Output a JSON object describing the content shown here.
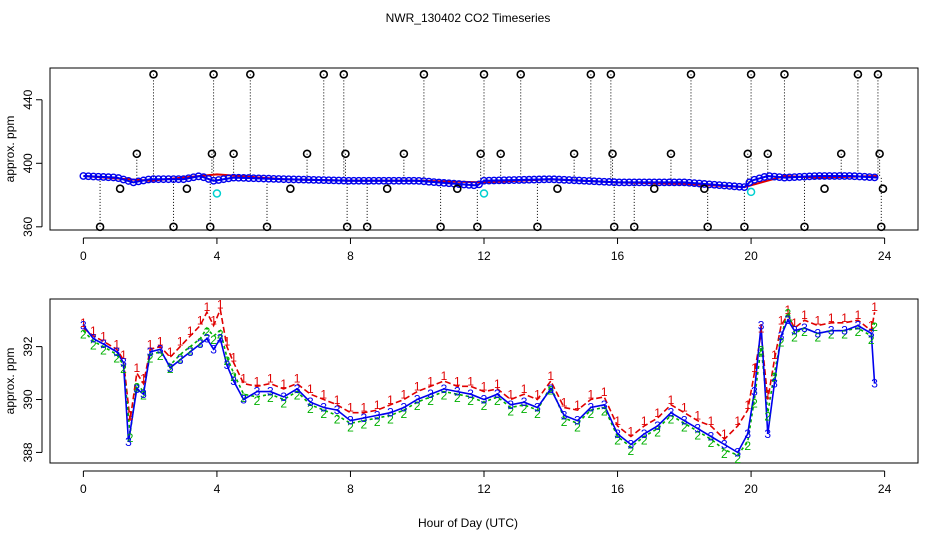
{
  "title": "NWR_130402  CO2 Timeseries",
  "xlabel": "Hour of Day (UTC)",
  "colors": {
    "series1": "#e00000",
    "series2": "#00b000",
    "series3": "#0000ee",
    "points_black": "#000000",
    "points_cyan": "#00d0d0"
  },
  "chart_data": [
    {
      "type": "scatter",
      "panel": "top",
      "ylabel": "approx. ppm",
      "xlim": [
        -1,
        25
      ],
      "ylim": [
        358,
        460
      ],
      "xticks": [
        0,
        4,
        8,
        12,
        16,
        20,
        24
      ],
      "yticks": [
        360,
        400,
        440
      ],
      "xtick_labels": [
        "0",
        "4",
        "8",
        "12",
        "16",
        "20",
        "24"
      ],
      "ytick_labels": [
        "360",
        "400",
        "440"
      ],
      "baseline_series": [
        {
          "name": "red",
          "x": [
            0,
            2,
            4,
            6,
            8,
            10,
            12,
            14,
            16,
            18,
            19.8,
            21,
            22,
            23.8
          ],
          "y": [
            392,
            389,
            393,
            390,
            389,
            389,
            388,
            390,
            388,
            387,
            385,
            392,
            391,
            392
          ]
        },
        {
          "name": "blue",
          "x": [
            0,
            1,
            1.5,
            2,
            3,
            3.5,
            3.9,
            4.5,
            6,
            8,
            10,
            11.8,
            12,
            14,
            16,
            18,
            19.8,
            20,
            20.5,
            21,
            22,
            23,
            23.8
          ],
          "y": [
            392,
            391,
            388,
            390,
            390,
            392,
            389,
            391,
            390,
            389,
            389,
            386,
            389,
            390,
            388,
            388,
            385,
            389,
            392,
            391,
            392,
            392,
            391
          ]
        }
      ],
      "cyan_points": {
        "x": [
          4.0,
          12.0,
          20.0
        ],
        "y": [
          381,
          381,
          382
        ]
      },
      "high_spikes": {
        "x": [
          2.1,
          3.9,
          5.0,
          7.2,
          7.8,
          10.2,
          12.0,
          13.1,
          15.2,
          15.8,
          18.2,
          20.0,
          21.0,
          23.2,
          23.8
        ],
        "y": [
          456,
          456,
          456,
          456,
          456,
          456,
          456,
          456,
          456,
          456,
          456,
          456,
          456,
          456,
          456
        ]
      },
      "mid_spikes": {
        "x": [
          1.6,
          3.85,
          4.5,
          6.7,
          7.85,
          9.6,
          11.9,
          12.5,
          14.7,
          15.85,
          17.6,
          19.9,
          20.5,
          22.7,
          23.85
        ],
        "y": [
          406,
          406,
          406,
          406,
          406,
          406,
          406,
          406,
          406,
          406,
          406,
          406,
          406,
          406,
          406
        ]
      },
      "low_spikes": {
        "x": [
          0.5,
          2.7,
          3.8,
          5.5,
          7.9,
          8.5,
          10.7,
          11.8,
          13.6,
          15.9,
          16.5,
          18.7,
          19.8,
          21.6,
          23.9
        ],
        "y": [
          360,
          360,
          360,
          360,
          360,
          360,
          360,
          360,
          360,
          360,
          360,
          360,
          360,
          360,
          360
        ]
      },
      "minor_points": {
        "x": [
          1.1,
          3.1,
          6.2,
          9.1,
          11.2,
          14.2,
          17.1,
          18.6,
          22.2,
          23.95
        ],
        "y": [
          384,
          384,
          384,
          384,
          384,
          384,
          384,
          384,
          384,
          384
        ]
      }
    },
    {
      "type": "line",
      "panel": "bottom",
      "ylabel": "approx. ppm",
      "xlim": [
        -1,
        25
      ],
      "ylim": [
        387.6,
        393.8
      ],
      "xticks": [
        0,
        4,
        8,
        12,
        16,
        20,
        24
      ],
      "yticks": [
        388,
        390,
        392
      ],
      "xtick_labels": [
        "0",
        "4",
        "8",
        "12",
        "16",
        "20",
        "24"
      ],
      "ytick_labels": [
        "388",
        "390",
        "392"
      ],
      "series": [
        {
          "name": "1",
          "marker": "1",
          "x": [
            0,
            0.3,
            0.6,
            1.0,
            1.2,
            1.4,
            1.6,
            1.8,
            2.0,
            2.3,
            2.6,
            2.9,
            3.2,
            3.5,
            3.7,
            3.9,
            4.1,
            4.3,
            4.5,
            4.8,
            5.2,
            5.6,
            6.0,
            6.4,
            6.8,
            7.2,
            7.6,
            8.0,
            8.4,
            8.8,
            9.2,
            9.6,
            10.0,
            10.4,
            10.8,
            11.2,
            11.6,
            12.0,
            12.4,
            12.8,
            13.2,
            13.6,
            14.0,
            14.4,
            14.8,
            15.2,
            15.6,
            16.0,
            16.4,
            16.8,
            17.2,
            17.6,
            18.0,
            18.4,
            18.8,
            19.2,
            19.6,
            19.9,
            20.1,
            20.3,
            20.5,
            20.7,
            20.9,
            21.1,
            21.3,
            21.6,
            22.0,
            22.4,
            22.8,
            23.2,
            23.6,
            23.7
          ],
          "y": [
            392.7,
            392.4,
            392.2,
            391.9,
            391.5,
            389.2,
            391.0,
            390.6,
            391.9,
            392.0,
            391.6,
            392.0,
            392.4,
            392.8,
            393.3,
            392.8,
            393.4,
            392.0,
            391.4,
            390.6,
            390.5,
            390.6,
            390.4,
            390.6,
            390.2,
            390.0,
            389.8,
            389.5,
            389.5,
            389.6,
            389.8,
            390.0,
            390.3,
            390.5,
            390.7,
            390.5,
            390.5,
            390.3,
            390.4,
            390.0,
            390.2,
            390.0,
            390.7,
            389.7,
            389.6,
            390.0,
            390.1,
            389.0,
            388.6,
            389.0,
            389.3,
            389.8,
            389.5,
            389.2,
            389.0,
            388.5,
            389.0,
            389.6,
            391.0,
            392.5,
            390.0,
            391.5,
            392.8,
            393.2,
            392.7,
            393.0,
            392.8,
            392.9,
            392.9,
            393.0,
            392.6,
            393.3
          ]
        },
        {
          "name": "2",
          "marker": "2",
          "x": [
            0,
            0.3,
            0.6,
            1.0,
            1.2,
            1.4,
            1.6,
            1.8,
            2.0,
            2.3,
            2.6,
            2.9,
            3.2,
            3.5,
            3.7,
            3.9,
            4.1,
            4.3,
            4.5,
            4.8,
            5.2,
            5.6,
            6.0,
            6.4,
            6.8,
            7.2,
            7.6,
            8.0,
            8.4,
            8.8,
            9.2,
            9.6,
            10.0,
            10.4,
            10.8,
            11.2,
            11.6,
            12.0,
            12.4,
            12.8,
            13.2,
            13.6,
            14.0,
            14.4,
            14.8,
            15.2,
            15.6,
            16.0,
            16.4,
            16.8,
            17.2,
            17.6,
            18.0,
            18.4,
            18.8,
            19.2,
            19.6,
            19.9,
            20.1,
            20.3,
            20.5,
            20.7,
            20.9,
            21.1,
            21.3,
            21.6,
            22.0,
            22.4,
            22.8,
            23.2,
            23.6,
            23.7
          ],
          "y": [
            392.6,
            392.2,
            392.0,
            391.7,
            391.3,
            388.7,
            390.6,
            390.3,
            391.7,
            391.8,
            391.3,
            391.7,
            392.0,
            392.3,
            392.7,
            392.4,
            392.6,
            391.6,
            391.0,
            390.2,
            390.1,
            390.2,
            390.0,
            390.3,
            389.8,
            389.6,
            389.4,
            389.1,
            389.2,
            389.3,
            389.4,
            389.6,
            389.9,
            390.1,
            390.3,
            390.2,
            390.1,
            389.9,
            390.1,
            389.7,
            389.8,
            389.6,
            390.5,
            389.3,
            389.1,
            389.6,
            389.7,
            388.6,
            388.2,
            388.6,
            388.9,
            389.4,
            389.1,
            388.8,
            388.5,
            388.1,
            387.9,
            388.4,
            390.0,
            392.0,
            389.5,
            391.0,
            392.3,
            393.4,
            392.5,
            392.7,
            392.5,
            392.6,
            392.6,
            392.7,
            392.4,
            392.9
          ]
        },
        {
          "name": "3",
          "marker": "3",
          "x": [
            0,
            0.3,
            0.6,
            1.0,
            1.2,
            1.35,
            1.6,
            1.8,
            2.0,
            2.3,
            2.6,
            2.9,
            3.2,
            3.5,
            3.7,
            3.9,
            4.1,
            4.3,
            4.5,
            4.8,
            5.2,
            5.6,
            6.0,
            6.4,
            6.8,
            7.2,
            7.6,
            8.0,
            8.4,
            8.8,
            9.2,
            9.6,
            10.0,
            10.4,
            10.8,
            11.2,
            11.6,
            12.0,
            12.4,
            12.8,
            13.2,
            13.6,
            14.0,
            14.4,
            14.8,
            15.2,
            15.6,
            16.0,
            16.4,
            16.8,
            17.2,
            17.6,
            18.0,
            18.4,
            18.8,
            19.2,
            19.6,
            19.9,
            20.1,
            20.3,
            20.5,
            20.7,
            20.9,
            21.1,
            21.3,
            21.6,
            22.0,
            22.4,
            22.8,
            23.2,
            23.6,
            23.7
          ],
          "y": [
            392.8,
            392.3,
            392.1,
            391.8,
            391.4,
            388.4,
            390.4,
            390.2,
            391.8,
            391.9,
            391.2,
            391.5,
            391.8,
            392.1,
            392.3,
            391.9,
            392.3,
            391.3,
            390.7,
            390.0,
            390.3,
            390.3,
            390.1,
            390.4,
            389.9,
            389.7,
            389.6,
            389.2,
            389.3,
            389.4,
            389.5,
            389.7,
            390.0,
            390.2,
            390.4,
            390.3,
            390.2,
            390.0,
            390.2,
            389.8,
            389.9,
            389.7,
            390.4,
            389.4,
            389.2,
            389.7,
            389.8,
            388.7,
            388.3,
            388.7,
            389.0,
            389.5,
            389.2,
            388.9,
            388.6,
            388.3,
            388.0,
            388.7,
            390.3,
            392.8,
            388.7,
            390.6,
            392.4,
            393.0,
            392.6,
            392.7,
            392.5,
            392.6,
            392.6,
            392.8,
            392.5,
            390.6
          ]
        }
      ]
    }
  ]
}
